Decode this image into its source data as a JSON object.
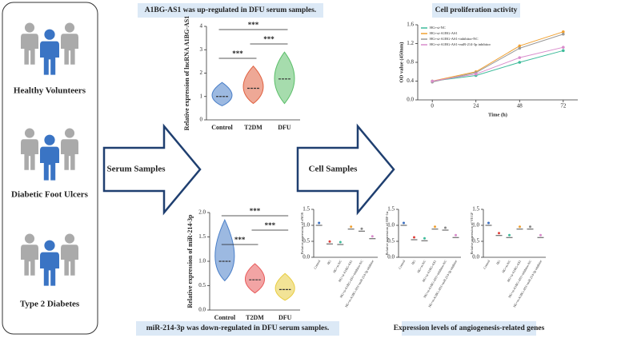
{
  "left_panel": {
    "groups": [
      "Healthy Volunteers",
      "Diabetic Foot Ulcers",
      "Type 2 Diabetes"
    ]
  },
  "arrows": [
    "Serum Samples",
    "Cell Samples"
  ],
  "violin_top": {
    "type": "violin",
    "title": "A1BG-AS1 was up-regulated in DFU serum samples.",
    "ylabel": "Relative expression of lncRNA A1BG-AS1",
    "categories": [
      "Control",
      "T2DM",
      "DFU"
    ],
    "colors": [
      "#4a7fc8",
      "#e0603f",
      "#5cbf6a"
    ],
    "medians": [
      1.0,
      1.35,
      1.75
    ],
    "min": [
      0.6,
      0.7,
      0.7
    ],
    "max": [
      1.6,
      2.3,
      2.9
    ],
    "ylim": [
      0,
      4
    ],
    "yticks": [
      0,
      1,
      2,
      3,
      4
    ],
    "significance": [
      "***",
      "***",
      "***"
    ]
  },
  "violin_bottom": {
    "type": "violin",
    "title": "miR-214-3p was down-regulated in DFU serum samples.",
    "ylabel": "Relative expression of miR-214-3p",
    "categories": [
      "Control",
      "T2DM",
      "DFU"
    ],
    "colors": [
      "#4a7fc8",
      "#e85a5a",
      "#e8cc40"
    ],
    "medians": [
      1.0,
      0.62,
      0.42
    ],
    "min": [
      0.6,
      0.35,
      0.2
    ],
    "max": [
      1.85,
      0.95,
      0.75
    ],
    "ylim": [
      0,
      2
    ],
    "yticks": [
      {
        "value": 0,
        "label": "0.0"
      },
      0.5,
      {
        "value": 1,
        "label": "1.0"
      },
      1.5,
      {
        "value": 2,
        "label": "2.0"
      }
    ],
    "significance": [
      "***",
      "***",
      "***"
    ]
  },
  "line_chart": {
    "type": "line",
    "title": "Cell proliferation activity",
    "xlabel": "Time (h)",
    "ylabel": "OD value (450nm)",
    "x": [
      0,
      24,
      48,
      72
    ],
    "xlim": [
      -8,
      80
    ],
    "xticks": [
      0,
      24,
      48,
      72
    ],
    "ylim": [
      0,
      1.6
    ],
    "yticks": [
      {
        "value": 0,
        "label": "0.0"
      },
      0.4,
      0.8,
      1.2,
      1.6
    ],
    "series": [
      {
        "name": "HG+si-NC",
        "color": "#3dbb9a",
        "values": [
          0.4,
          0.52,
          0.8,
          1.05
        ]
      },
      {
        "name": "HG+si-A1BG-AS1",
        "color": "#f0a030",
        "values": [
          0.4,
          0.6,
          1.15,
          1.45
        ]
      },
      {
        "name": "HG+si-A1BG-AS1+inhibitor-NC",
        "color": "#999999",
        "values": [
          0.38,
          0.58,
          1.1,
          1.4
        ]
      },
      {
        "name": "HG+si-A1BG-AS1+miR-214-3p inhibitor",
        "color": "#d98ccc",
        "values": [
          0.4,
          0.55,
          0.9,
          1.12
        ]
      }
    ],
    "legend": "top-left"
  },
  "dot_plots": {
    "title": "Expression levels of angiogenesis-related genes",
    "categories": [
      "Control",
      "HG",
      "HG+si-NC",
      "HG+si-A1BG-AS1",
      "HG+si-A1BG-AS1+inhibitor-NC",
      "HG+si-A1BG-AS1+miR-214-3p inhibitor"
    ],
    "colors": [
      "#3a6fc0",
      "#e0403a",
      "#3dbb9a",
      "#f0a030",
      "#888888",
      "#d98ccc"
    ],
    "ylim": [
      0,
      1.5
    ],
    "yticks": [
      {
        "value": 0,
        "label": "0.0"
      },
      0.5,
      {
        "value": 1,
        "label": "1.0"
      },
      1.5
    ],
    "charts": [
      {
        "ylabel": "Relative expression of eNOS",
        "values": [
          1.0,
          0.42,
          0.4,
          0.88,
          0.82,
          0.58
        ]
      },
      {
        "ylabel": "Relative expression of HIF-1α",
        "values": [
          1.0,
          0.55,
          0.52,
          0.88,
          0.85,
          0.62
        ]
      },
      {
        "ylabel": "Relative expression of VEGF",
        "values": [
          1.0,
          0.68,
          0.62,
          0.88,
          0.88,
          0.62
        ]
      }
    ]
  }
}
